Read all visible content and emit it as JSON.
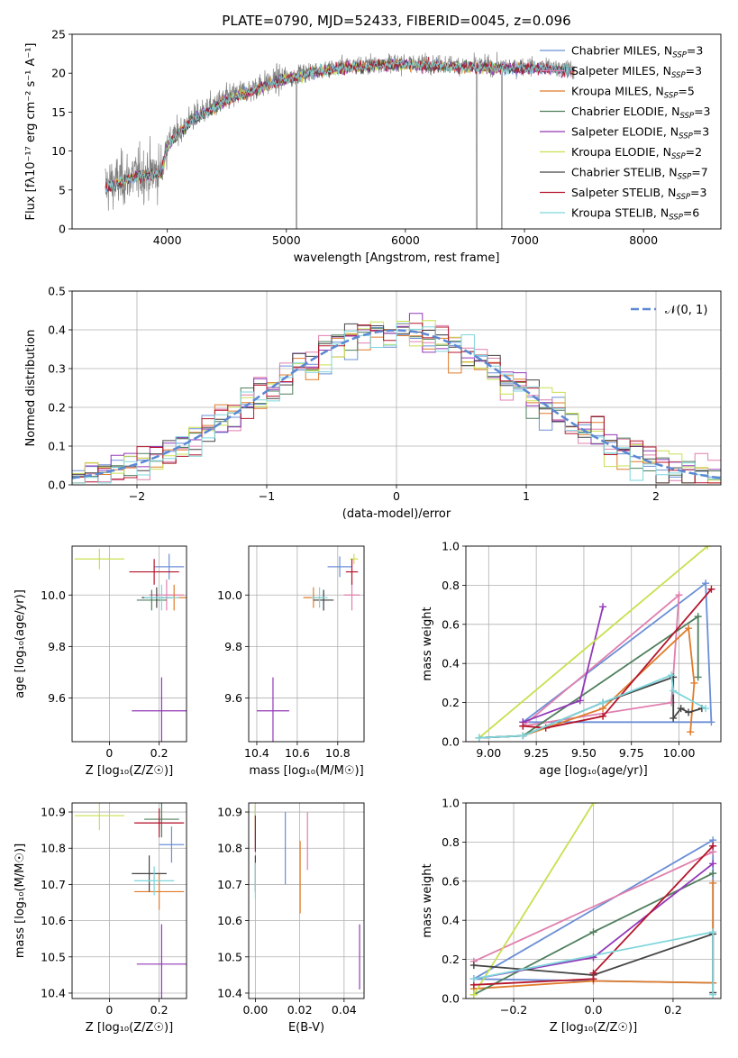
{
  "figure_title": "PLATE=0790, MJD=52433, FIBERID=0045, z=0.096",
  "models": [
    {
      "label_main": "Chabrier MILES, N",
      "label_sub": "SSP",
      "label_end": "=3",
      "color": "#6b8fd6"
    },
    {
      "label_main": "Salpeter MILES, N",
      "label_sub": "SSP",
      "label_end": "=3",
      "color": "#e07fae"
    },
    {
      "label_main": "Kroupa MILES, N",
      "label_sub": "SSP",
      "label_end": "=5",
      "color": "#e07b2a"
    },
    {
      "label_main": "Chabrier ELODIE, N",
      "label_sub": "SSP",
      "label_end": "=3",
      "color": "#4f7f5c"
    },
    {
      "label_main": "Salpeter ELODIE, N",
      "label_sub": "SSP",
      "label_end": "=3",
      "color": "#9238b8"
    },
    {
      "label_main": "Kroupa ELODIE, N",
      "label_sub": "SSP",
      "label_end": "=2",
      "color": "#c8e04f"
    },
    {
      "label_main": "Chabrier STELIB, N",
      "label_sub": "SSP",
      "label_end": "=7",
      "color": "#444444"
    },
    {
      "label_main": "Salpeter STELIB, N",
      "label_sub": "SSP",
      "label_end": "=3",
      "color": "#b5152b"
    },
    {
      "label_main": "Kroupa STELIB, N",
      "label_sub": "SSP",
      "label_end": "=6",
      "color": "#7ed6dc"
    }
  ],
  "chart_data": [
    {
      "id": "spectrum",
      "type": "line",
      "xlabel": "wavelength [Angstrom, rest frame]",
      "ylabel": "Flux [fλ10⁻¹⁷ erg cm⁻² s⁻¹ A⁻¹]",
      "xlim": [
        3200,
        8650
      ],
      "ylim": [
        0,
        25
      ],
      "xticks": [
        4000,
        5000,
        6000,
        7000,
        8000
      ],
      "yticks": [
        0,
        5,
        10,
        15,
        20,
        25
      ],
      "grid": false,
      "legend": "right",
      "data_color": "#808080",
      "continuum": {
        "x": [
          3480,
          3700,
          3950,
          4000,
          4200,
          4500,
          4800,
          5000,
          5200,
          5500,
          5800,
          6000,
          6300,
          6600,
          7000,
          7200,
          7420
        ],
        "y": [
          5.5,
          6.8,
          7.5,
          11.0,
          14.2,
          16.8,
          18.5,
          19.5,
          20.3,
          21.0,
          21.3,
          21.4,
          21.2,
          21.0,
          20.9,
          20.8,
          20.5
        ]
      }
    },
    {
      "id": "residuals",
      "type": "step",
      "xlabel": "(data-model)/error",
      "ylabel": "Normed distribution",
      "xlim": [
        -2.5,
        2.5
      ],
      "ylim": [
        0,
        0.5
      ],
      "xticks": [
        -2,
        -1,
        0,
        1,
        2
      ],
      "yticks": [
        0.0,
        0.1,
        0.2,
        0.3,
        0.4,
        0.5
      ],
      "grid": true,
      "legend": "top-right",
      "gauss_label": "𝒩(0, 1)",
      "gauss_color": "#5b88d3"
    },
    {
      "id": "z_age",
      "type": "errorbar",
      "xlabel": "Z [log₁₀(Z/Z☉)]",
      "ylabel": "age  [log₁₀(age/yr)]",
      "xlim": [
        -0.15,
        0.31
      ],
      "ylim": [
        9.43,
        10.19
      ],
      "xticks": [
        0.0,
        0.2
      ],
      "yticks": [
        9.6,
        9.8,
        10.0
      ],
      "grid": true,
      "points": [
        {
          "m": 0,
          "x": 0.24,
          "xe": 0.06,
          "y": 10.11,
          "ye": 0.05
        },
        {
          "m": 1,
          "x": 0.23,
          "xe": 0.07,
          "y": 10.0,
          "ye": 0.06
        },
        {
          "m": 2,
          "x": 0.26,
          "xe": 0.05,
          "y": 9.99,
          "ye": 0.05
        },
        {
          "m": 3,
          "x": 0.17,
          "xe": 0.06,
          "y": 9.98,
          "ye": 0.04
        },
        {
          "m": 4,
          "x": 0.21,
          "xe": 0.12,
          "y": 9.55,
          "ye": 0.13
        },
        {
          "m": 5,
          "x": -0.04,
          "xe": 0.1,
          "y": 10.14,
          "ye": 0.04
        },
        {
          "m": 6,
          "x": 0.19,
          "xe": 0.06,
          "y": 9.99,
          "ye": 0.04
        },
        {
          "m": 7,
          "x": 0.18,
          "xe": 0.1,
          "y": 10.09,
          "ye": 0.05
        },
        {
          "m": 8,
          "x": 0.21,
          "xe": 0.07,
          "y": 9.99,
          "ye": 0.05
        }
      ]
    },
    {
      "id": "mass_age",
      "type": "errorbar",
      "xlabel": "mass [log₁₀(M/M☉)]",
      "ylabel": "",
      "xlim": [
        10.36,
        10.93
      ],
      "ylim": [
        9.43,
        10.19
      ],
      "xticks": [
        10.4,
        10.6,
        10.8
      ],
      "yticks": [
        9.6,
        9.8,
        10.0
      ],
      "grid": true,
      "points": [
        {
          "m": 0,
          "x": 10.81,
          "xe": 0.06,
          "y": 10.11,
          "ye": 0.04
        },
        {
          "m": 1,
          "x": 10.87,
          "xe": 0.04,
          "y": 10.0,
          "ye": 0.06
        },
        {
          "m": 2,
          "x": 10.68,
          "xe": 0.05,
          "y": 9.99,
          "ye": 0.04
        },
        {
          "m": 3,
          "x": 10.73,
          "xe": 0.04,
          "y": 9.98,
          "ye": 0.04
        },
        {
          "m": 4,
          "x": 10.48,
          "xe": 0.08,
          "y": 9.55,
          "ye": 0.13
        },
        {
          "m": 5,
          "x": 10.88,
          "xe": 0.02,
          "y": 10.14,
          "ye": 0.02
        },
        {
          "m": 6,
          "x": 10.73,
          "xe": 0.05,
          "y": 9.98,
          "ye": 0.04
        },
        {
          "m": 7,
          "x": 10.87,
          "xe": 0.03,
          "y": 10.09,
          "ye": 0.05
        },
        {
          "m": 8,
          "x": 10.71,
          "xe": 0.04,
          "y": 9.99,
          "ye": 0.04
        }
      ]
    },
    {
      "id": "age_weight",
      "type": "line",
      "xlabel": "age  [log₁₀(age/yr)]",
      "ylabel": "mass weight",
      "xlim": [
        8.88,
        10.22
      ],
      "ylim": [
        0,
        1
      ],
      "xticks": [
        9.0,
        9.25,
        9.5,
        9.75,
        10.0
      ],
      "xtick_labels": [
        "9.00",
        "9.25",
        "9.50",
        "9.75",
        "10.00"
      ],
      "yticks": [
        0.0,
        0.2,
        0.4,
        0.6,
        0.8,
        1.0
      ],
      "grid": true,
      "series": [
        {
          "m": 0,
          "x": [
            9.18,
            10.14,
            10.17,
            9.18
          ],
          "y": [
            0.1,
            0.81,
            0.1,
            0.1
          ]
        },
        {
          "m": 1,
          "x": [
            9.18,
            9.96,
            10.0,
            9.18
          ],
          "y": [
            0.08,
            0.2,
            0.75,
            0.08
          ]
        },
        {
          "m": 2,
          "x": [
            8.95,
            9.18,
            9.6,
            10.05,
            10.08,
            10.06
          ],
          "y": [
            0.02,
            0.03,
            0.17,
            0.58,
            0.3,
            0.05
          ]
        },
        {
          "m": 3,
          "x": [
            8.95,
            9.18,
            10.1,
            10.1
          ],
          "y": [
            0.02,
            0.03,
            0.64,
            0.33
          ]
        },
        {
          "m": 4,
          "x": [
            9.18,
            9.48,
            9.6
          ],
          "y": [
            0.1,
            0.21,
            0.69
          ]
        },
        {
          "m": 5,
          "x": [
            8.95,
            10.15
          ],
          "y": [
            0.02,
            1.0
          ]
        },
        {
          "m": 6,
          "x": [
            8.95,
            9.18,
            9.6,
            9.97,
            9.97,
            10.01,
            10.05,
            10.12
          ],
          "y": [
            0.02,
            0.03,
            0.2,
            0.33,
            0.12,
            0.17,
            0.15,
            0.17
          ]
        },
        {
          "m": 7,
          "x": [
            9.18,
            9.3,
            9.6,
            10.17
          ],
          "y": [
            0.08,
            0.07,
            0.13,
            0.78
          ]
        },
        {
          "m": 8,
          "x": [
            8.95,
            9.18,
            9.6,
            9.96,
            9.97,
            10.14
          ],
          "y": [
            0.02,
            0.03,
            0.2,
            0.34,
            0.26,
            0.17
          ]
        }
      ]
    },
    {
      "id": "z_mass",
      "type": "errorbar",
      "xlabel": "Z [log₁₀(Z/Z☉)]",
      "ylabel": "mass [log₁₀(M/M☉)]",
      "xlim": [
        -0.15,
        0.31
      ],
      "ylim": [
        10.385,
        10.925
      ],
      "xticks": [
        0.0,
        0.2
      ],
      "yticks": [
        10.4,
        10.5,
        10.6,
        10.7,
        10.8,
        10.9
      ],
      "grid": true,
      "points": [
        {
          "m": 0,
          "x": 0.25,
          "xe": 0.05,
          "y": 10.81,
          "ye": 0.05
        },
        {
          "m": 1,
          "x": 0.2,
          "xe": 0.09,
          "y": 10.87,
          "ye": 0.02
        },
        {
          "m": 2,
          "x": 0.2,
          "xe": 0.1,
          "y": 10.68,
          "ye": 0.05
        },
        {
          "m": 3,
          "x": 0.21,
          "xe": 0.07,
          "y": 10.88,
          "ye": 0.05
        },
        {
          "m": 4,
          "x": 0.21,
          "xe": 0.1,
          "y": 10.48,
          "ye": 0.11
        },
        {
          "m": 5,
          "x": -0.04,
          "xe": 0.1,
          "y": 10.89,
          "ye": 0.04
        },
        {
          "m": 6,
          "x": 0.16,
          "xe": 0.07,
          "y": 10.73,
          "ye": 0.05
        },
        {
          "m": 7,
          "x": 0.2,
          "xe": 0.1,
          "y": 10.87,
          "ye": 0.04
        },
        {
          "m": 8,
          "x": 0.18,
          "xe": 0.08,
          "y": 10.71,
          "ye": 0.04
        }
      ]
    },
    {
      "id": "ebv_mass",
      "type": "errorbar",
      "xlabel": "E(B-V)",
      "ylabel": "",
      "xlim": [
        -0.003,
        0.049
      ],
      "ylim": [
        10.385,
        10.925
      ],
      "xticks": [
        0.0,
        0.02,
        0.04
      ],
      "xtick_labels": [
        "0.00",
        "0.02",
        "0.04"
      ],
      "yticks": [
        10.4,
        10.5,
        10.6,
        10.7,
        10.8,
        10.9
      ],
      "grid": true,
      "points": [
        {
          "m": 0,
          "x": 0.0135,
          "xe": 0,
          "y": 10.8,
          "ye": 0.1
        },
        {
          "m": 1,
          "x": 0.0235,
          "xe": 0,
          "y": 10.82,
          "ye": 0.08
        },
        {
          "m": 2,
          "x": 0.0202,
          "xe": 0,
          "y": 10.72,
          "ye": 0.1
        },
        {
          "m": 3,
          "x": 0.0,
          "xe": 0,
          "y": 10.86,
          "ye": 0.06
        },
        {
          "m": 4,
          "x": 0.047,
          "xe": 0,
          "y": 10.5,
          "ye": 0.09
        },
        {
          "m": 5,
          "x": 0.0,
          "xe": 0,
          "y": 10.89,
          "ye": 0.04
        },
        {
          "m": 6,
          "x": 0.0,
          "xe": 0,
          "y": 10.73,
          "ye": 0.05
        },
        {
          "m": 7,
          "x": 0.0,
          "xe": 0,
          "y": 10.84,
          "ye": 0.05
        },
        {
          "m": 8,
          "x": 0.0,
          "xe": 0,
          "y": 10.71,
          "ye": 0.05
        }
      ]
    },
    {
      "id": "z_weight",
      "type": "line",
      "xlabel": "Z [log₁₀(Z/Z☉)]",
      "ylabel": "mass weight",
      "xlim": [
        -0.32,
        0.32
      ],
      "ylim": [
        0,
        1
      ],
      "xticks": [
        -0.2,
        0.0,
        0.2
      ],
      "xtick_labels": [
        "−0.2",
        "0.0",
        "0.2"
      ],
      "yticks": [
        0.0,
        0.2,
        0.4,
        0.6,
        0.8,
        1.0
      ],
      "grid": true,
      "series": [
        {
          "m": 0,
          "x": [
            -0.3,
            0.3,
            0.3,
            -0.3
          ],
          "y": [
            0.1,
            0.08,
            0.81,
            0.1
          ]
        },
        {
          "m": 1,
          "x": [
            -0.3,
            0.3
          ],
          "y": [
            0.19,
            0.75
          ]
        },
        {
          "m": 2,
          "x": [
            -0.3,
            0.0,
            0.3,
            0.3
          ],
          "y": [
            0.05,
            0.09,
            0.08,
            0.59
          ]
        },
        {
          "m": 3,
          "x": [
            -0.3,
            0.0,
            0.3
          ],
          "y": [
            0.02,
            0.34,
            0.64
          ]
        },
        {
          "m": 4,
          "x": [
            -0.3,
            0.0,
            0.3
          ],
          "y": [
            0.1,
            0.21,
            0.69
          ]
        },
        {
          "m": 5,
          "x": [
            -0.3,
            0.0
          ],
          "y": [
            0.02,
            1.0
          ]
        },
        {
          "m": 6,
          "x": [
            -0.3,
            0.0,
            0.3,
            0.3
          ],
          "y": [
            0.17,
            0.12,
            0.33,
            0.03
          ]
        },
        {
          "m": 7,
          "x": [
            -0.3,
            0.0,
            0.0,
            0.3
          ],
          "y": [
            0.07,
            0.1,
            0.13,
            0.78
          ]
        },
        {
          "m": 8,
          "x": [
            -0.3,
            0.3,
            0.3
          ],
          "y": [
            0.1,
            0.34,
            0.02
          ]
        }
      ]
    }
  ]
}
